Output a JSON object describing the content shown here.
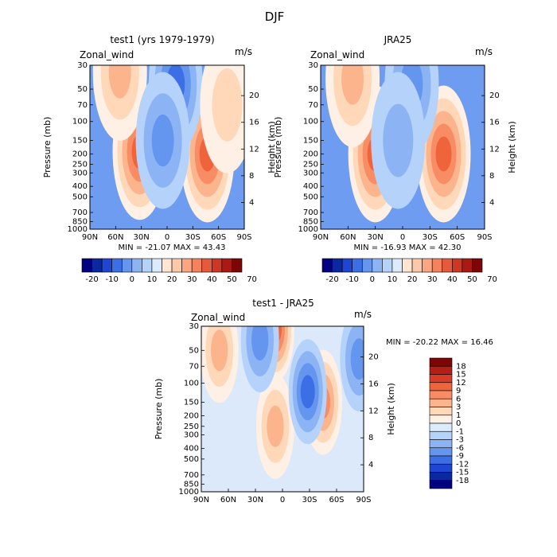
{
  "page": {
    "title": "DJF"
  },
  "chart_data": [
    {
      "type": "heatmap",
      "title": "test1 (yrs 1979-1979)",
      "left_label": "Zonal_wind",
      "unit_label": "m/s",
      "ylabel": "Pressure (mb)",
      "y2label": "Height (km)",
      "x_ticks": [
        "90N",
        "60N",
        "30N",
        "0",
        "30S",
        "60S",
        "90S"
      ],
      "y_ticks": [
        "30",
        "50",
        "70",
        "100",
        "150",
        "200",
        "250",
        "300",
        "400",
        "500",
        "700",
        "850",
        "1000"
      ],
      "y2_ticks": [
        "20",
        "16",
        "12",
        "8",
        "4"
      ],
      "stats": "MIN = -21.07   MAX =  43.43",
      "min": -21.07,
      "max": 43.43,
      "features": [
        {
          "lat": 32,
          "p": 190,
          "value": 43.4
        },
        {
          "lat": -47,
          "p": 200,
          "value": 38
        },
        {
          "lat": 55,
          "p": 35,
          "value": 16
        },
        {
          "lat": -10,
          "p": 45,
          "value": -21.07
        },
        {
          "lat": 5,
          "p": 150,
          "value": -12
        },
        {
          "lat": -70,
          "p": 70,
          "value": 4
        }
      ]
    },
    {
      "type": "heatmap",
      "title": "JRA25",
      "left_label": "Zonal_wind",
      "unit_label": "m/s",
      "ylabel": "Pressure (mb)",
      "y2label": "Height (km)",
      "x_ticks": [
        "90N",
        "60N",
        "30N",
        "0",
        "30S",
        "60S",
        "90S"
      ],
      "y_ticks": [
        "30",
        "50",
        "70",
        "100",
        "150",
        "200",
        "250",
        "300",
        "400",
        "500",
        "700",
        "850",
        "1000"
      ],
      "y2_ticks": [
        "20",
        "16",
        "12",
        "8",
        "4"
      ],
      "stats": "MIN = -16.93   MAX =  42.30",
      "min": -16.93,
      "max": 42.3,
      "features": [
        {
          "lat": 30,
          "p": 200,
          "value": 42.3
        },
        {
          "lat": -45,
          "p": 200,
          "value": 35
        },
        {
          "lat": 55,
          "p": 40,
          "value": 12
        },
        {
          "lat": -10,
          "p": 45,
          "value": -16.93
        },
        {
          "lat": 5,
          "p": 150,
          "value": -8
        }
      ]
    },
    {
      "type": "heatmap",
      "title": "test1 - JRA25",
      "left_label": "Zonal_wind",
      "unit_label": "m/s",
      "ylabel": "Pressure (mb)",
      "y2label": "Height (km)",
      "x_ticks": [
        "90N",
        "60N",
        "30N",
        "0",
        "30S",
        "60S",
        "90S"
      ],
      "y_ticks": [
        "30",
        "50",
        "70",
        "100",
        "150",
        "200",
        "250",
        "300",
        "400",
        "500",
        "700",
        "850",
        "1000"
      ],
      "y2_ticks": [
        "20",
        "16",
        "12",
        "8",
        "4"
      ],
      "stats": "MIN = -20.22   MAX =  16.46",
      "min": -20.22,
      "max": 16.46,
      "features": [
        {
          "lat": 8,
          "p": 32,
          "value": 16.46
        },
        {
          "lat": -45,
          "p": 150,
          "value": 8
        },
        {
          "lat": 70,
          "p": 50,
          "value": 5
        },
        {
          "lat": 8,
          "p": 250,
          "value": 7
        },
        {
          "lat": -28,
          "p": 120,
          "value": -8
        },
        {
          "lat": 25,
          "p": 40,
          "value": -6
        },
        {
          "lat": -85,
          "p": 60,
          "value": -6
        }
      ]
    }
  ],
  "colorbars": {
    "top": {
      "labels": [
        "-20",
        "-10",
        "0",
        "10",
        "20",
        "30",
        "40",
        "50",
        "70"
      ],
      "colors": [
        "#000080",
        "#0a28a0",
        "#1e46d2",
        "#3c6ee6",
        "#6496f0",
        "#8cb4f5",
        "#b4d2fa",
        "#dcebfc",
        "#ffe6d2",
        "#fcc8aa",
        "#fba582",
        "#f5825f",
        "#e65a3c",
        "#cd3723",
        "#aa1912",
        "#7d0505"
      ]
    },
    "diff": {
      "labels": [
        "18",
        "15",
        "12",
        "9",
        "6",
        "3",
        "1",
        "0",
        "-1",
        "-3",
        "-6",
        "-9",
        "-12",
        "-15",
        "-18"
      ],
      "colors": [
        "#7d0505",
        "#b41e14",
        "#d73c28",
        "#f0643c",
        "#f88c64",
        "#fcb48c",
        "#ffd7b9",
        "#fff0e6",
        "#dcebfc",
        "#b4d2fa",
        "#8cb4f5",
        "#6496f0",
        "#3c6ee6",
        "#1e46d2",
        "#0a28a0",
        "#000080"
      ]
    }
  }
}
